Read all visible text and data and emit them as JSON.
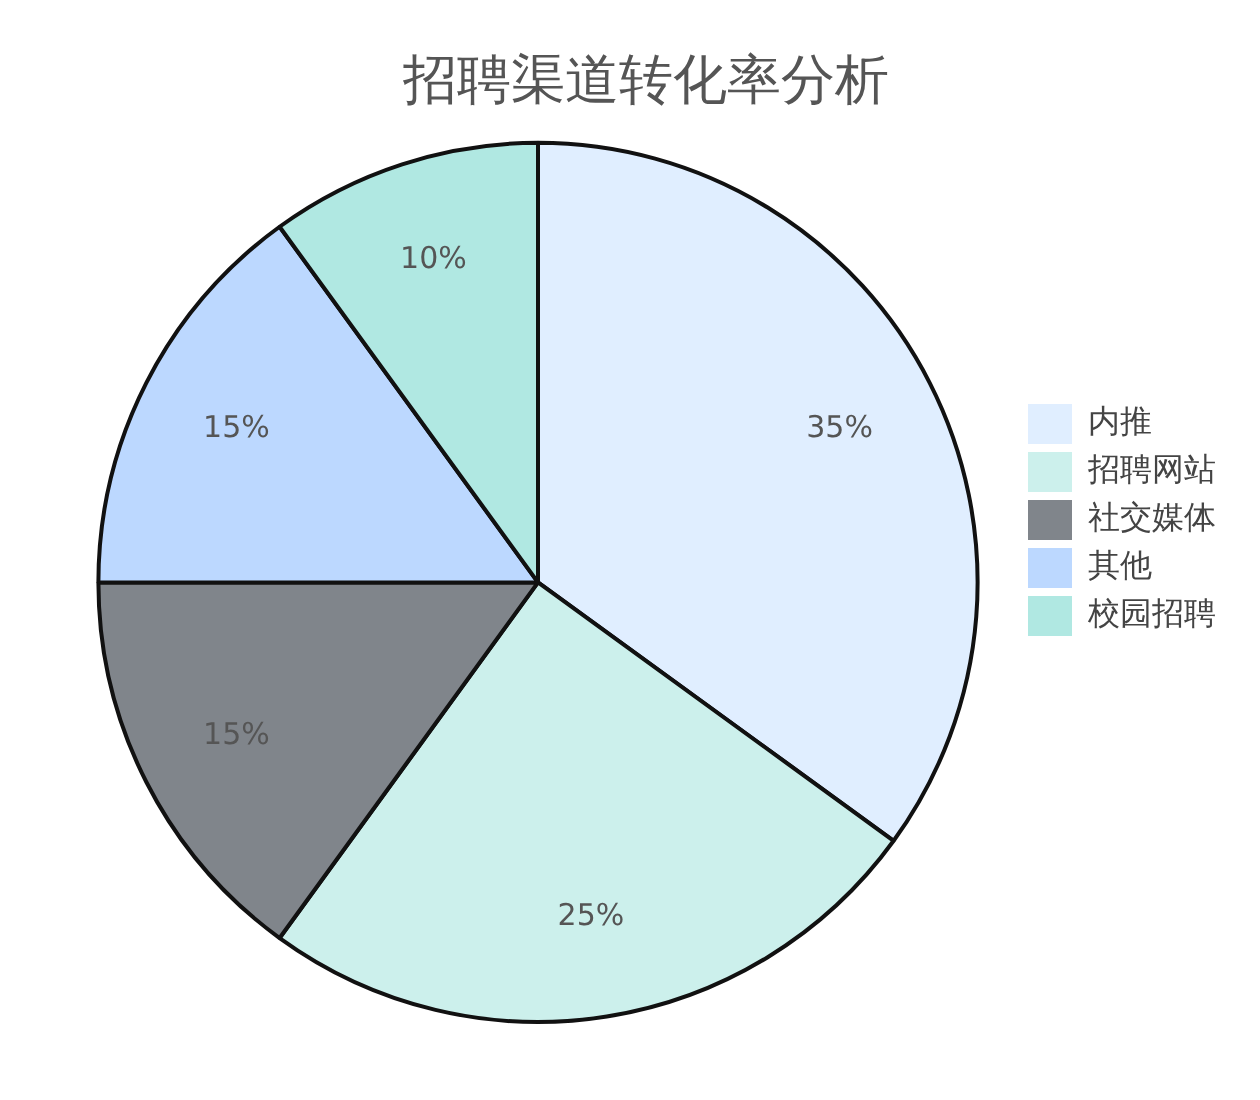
{
  "chart_data": {
    "type": "pie",
    "title": "招聘渠道转化率分析",
    "categories": [
      "内推",
      "招聘网站",
      "社交媒体",
      "其他",
      "校园招聘"
    ],
    "values": [
      35,
      25,
      15,
      15,
      10
    ],
    "colors": [
      "#e0eeff",
      "#ccf0ec",
      "#80858b",
      "#bcd8ff",
      "#b0e8e2"
    ],
    "value_labels": [
      "35%",
      "25%",
      "15%",
      "15%",
      "10%"
    ],
    "legend": "right"
  }
}
